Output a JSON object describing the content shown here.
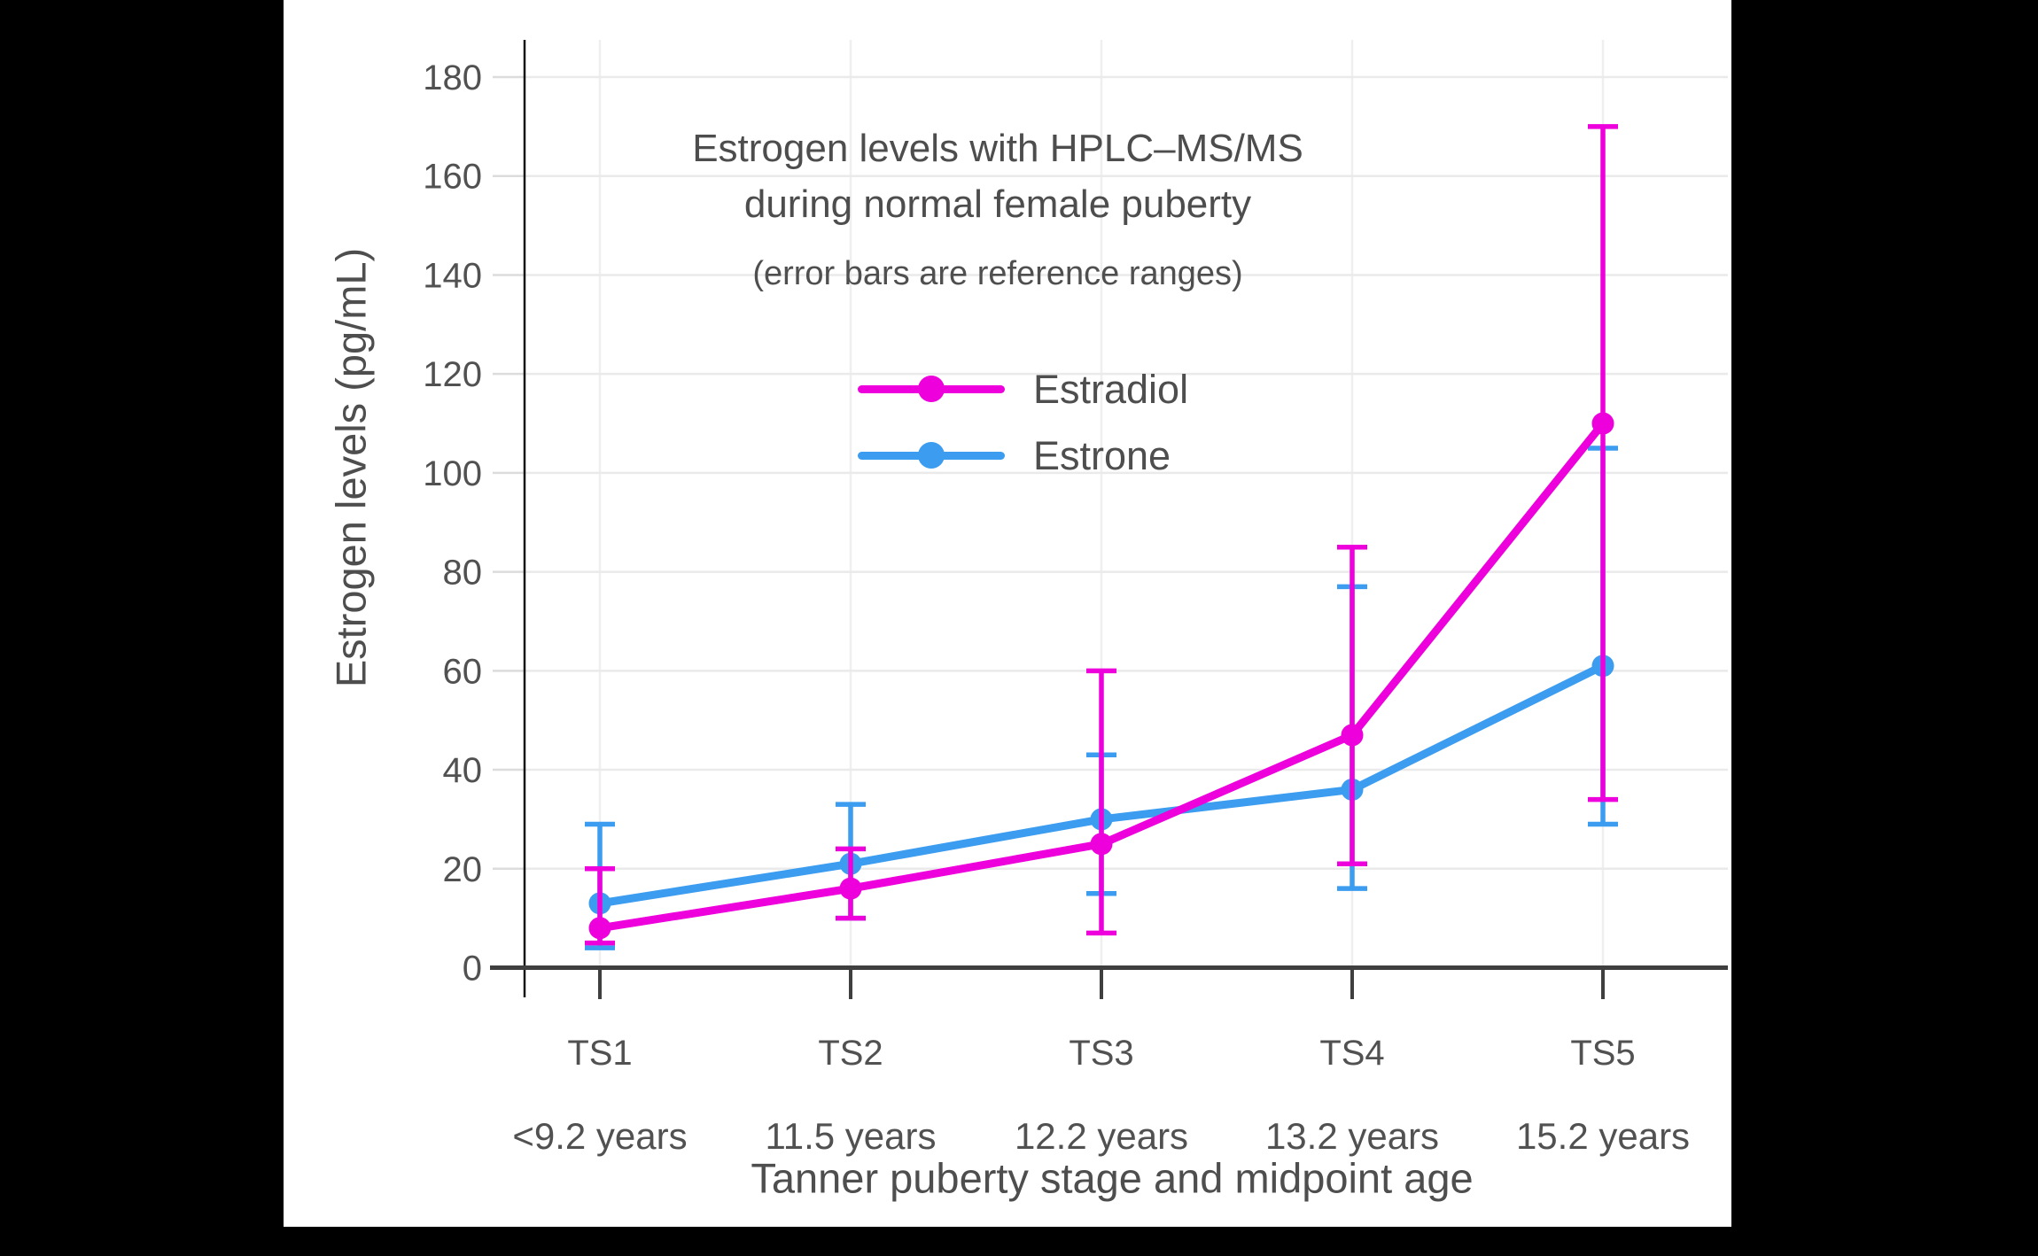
{
  "canvas": {
    "background_color": "#000000",
    "panel_color": "#ffffff"
  },
  "title": {
    "line1": "Estrogen levels with HPLC–MS/MS",
    "line2": "during normal female puberty",
    "subtitle": "(error bars are reference ranges)"
  },
  "legend": {
    "items": [
      {
        "label": "Estradiol",
        "color": "#ee00dc"
      },
      {
        "label": "Estrone",
        "color": "#3b9cf0"
      }
    ]
  },
  "axes": {
    "y_title": "Estrogen levels (pg/mL)",
    "x_title": "Tanner puberty stage and midpoint age",
    "y_tick_labels": [
      "0",
      "20",
      "40",
      "60",
      "80",
      "100",
      "120",
      "140",
      "160",
      "180"
    ],
    "x_tick_stage_labels": [
      "TS1",
      "TS2",
      "TS3",
      "TS4",
      "TS5"
    ],
    "x_tick_age_labels": [
      "<9.2 years",
      "11.5 years",
      "12.2 years",
      "13.2 years",
      "15.2 years"
    ]
  },
  "chart_data": {
    "type": "line",
    "title": "Estrogen levels with HPLC–MS/MS during normal female puberty",
    "subtitle": "(error bars are reference ranges)",
    "xlabel": "Tanner puberty stage and midpoint age",
    "ylabel": "Estrogen levels (pg/mL)",
    "categories": [
      "TS1",
      "TS2",
      "TS3",
      "TS4",
      "TS5"
    ],
    "category_sublabels": [
      "<9.2 years",
      "11.5 years",
      "12.2 years",
      "13.2 years",
      "15.2 years"
    ],
    "ylim": [
      0,
      188
    ],
    "y_ticks": [
      0,
      20,
      40,
      60,
      80,
      100,
      120,
      140,
      160,
      180
    ],
    "grid": true,
    "legend_position": "upper-left inside plot",
    "error_bar_meaning": "reference ranges",
    "series": [
      {
        "name": "Estradiol",
        "color": "#ee00dc",
        "values": [
          8,
          16,
          25,
          47,
          110
        ],
        "error_low": [
          5,
          10,
          7,
          21,
          34
        ],
        "error_high": [
          20,
          24,
          60,
          85,
          170
        ]
      },
      {
        "name": "Estrone",
        "color": "#3b9cf0",
        "values": [
          13,
          21,
          30,
          36,
          61
        ],
        "error_low": [
          4,
          10,
          15,
          16,
          29
        ],
        "error_high": [
          29,
          33,
          43,
          77,
          105
        ]
      }
    ]
  }
}
